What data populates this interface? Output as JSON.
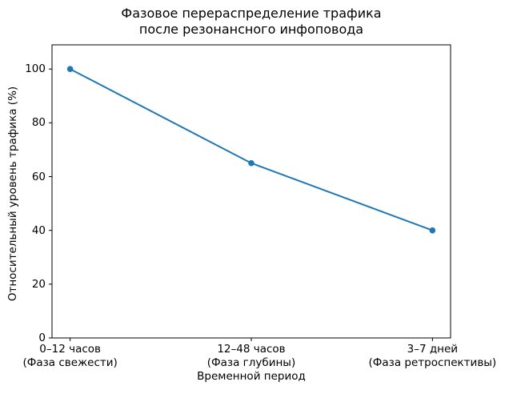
{
  "figure": {
    "background": "#ffffff"
  },
  "chart_data": {
    "type": "line",
    "title": "Фазовое перераспределение трафика\nпосле резонансного инфоповода",
    "xlabel": "Временной период",
    "ylabel": "Относительный уровень трафика (%)",
    "categories": [
      "0–12 часов\n(Фаза свежести)",
      "12–48 часов\n(Фаза глубины)",
      "3–7 дней\n(Фаза ретроспективы)"
    ],
    "values": [
      100,
      65,
      40
    ],
    "yticks": [
      0,
      20,
      40,
      60,
      80,
      100
    ],
    "ylim": [
      0,
      109
    ],
    "x_margin": 0.05,
    "grid": false,
    "legend": "none",
    "line_color": "#1f77b4",
    "marker": "circle",
    "spine_color": "#000000",
    "text_color": "#000000"
  }
}
